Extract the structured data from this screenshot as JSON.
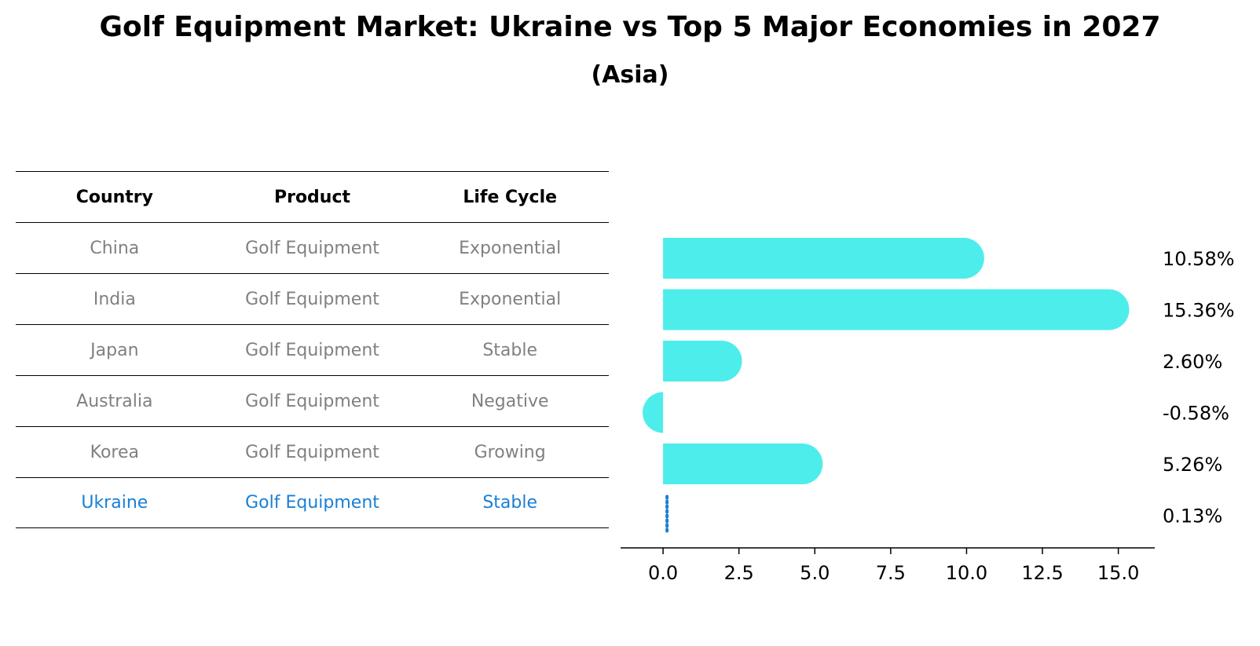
{
  "header": {
    "title": "Golf Equipment Market: Ukraine vs Top 5 Major Economies in 2027",
    "subtitle": "(Asia)"
  },
  "table": {
    "columns": [
      "Country",
      "Product",
      "Life Cycle"
    ],
    "rows": [
      {
        "country": "China",
        "product": "Golf Equipment",
        "life_cycle": "Exponential"
      },
      {
        "country": "India",
        "product": "Golf Equipment",
        "life_cycle": "Exponential"
      },
      {
        "country": "Japan",
        "product": "Golf Equipment",
        "life_cycle": "Stable"
      },
      {
        "country": "Australia",
        "product": "Golf Equipment",
        "life_cycle": "Negative"
      },
      {
        "country": "Korea",
        "product": "Golf Equipment",
        "life_cycle": "Growing"
      },
      {
        "country": "Ukraine",
        "product": "Golf Equipment",
        "life_cycle": "Stable"
      }
    ]
  },
  "colors": {
    "bar": "#4dedec",
    "highlight": "#1a7fd4",
    "table_text": "#808080"
  },
  "chart_data": {
    "type": "bar",
    "orientation": "horizontal",
    "categories": [
      "China",
      "India",
      "Japan",
      "Australia",
      "Korea",
      "Ukraine"
    ],
    "values": [
      10.58,
      15.36,
      2.6,
      -0.58,
      5.26,
      0.13
    ],
    "value_labels": [
      "10.58%",
      "15.36%",
      "2.60%",
      "-0.58%",
      "5.26%",
      "0.13%"
    ],
    "xlim": [
      -1.4,
      16.2
    ],
    "xticks": [
      0.0,
      2.5,
      5.0,
      7.5,
      10.0,
      12.5,
      15.0
    ],
    "xtick_labels": [
      "0.0",
      "2.5",
      "5.0",
      "7.5",
      "10.0",
      "12.5",
      "15.0"
    ],
    "highlight_category": "Ukraine"
  }
}
